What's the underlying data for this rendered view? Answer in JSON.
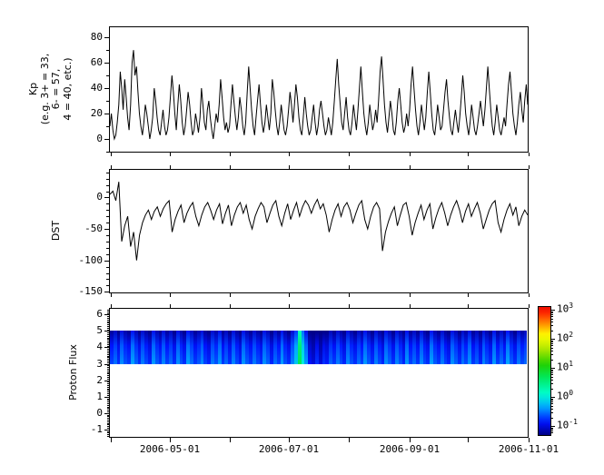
{
  "figure": {
    "background": "#ffffff",
    "axis_color": "#000000",
    "series_color": "#000000",
    "text_color": "#000000"
  },
  "x_axis": {
    "start_date": "2006-03-31",
    "end_date": "2006-11-01",
    "span_days": 215,
    "tick_dates": [
      "2006-04-01",
      "2006-05-01",
      "2006-06-01",
      "2006-07-01",
      "2006-08-01",
      "2006-09-01",
      "2006-10-01",
      "2006-11-01"
    ],
    "label_dates": [
      "2006-05-01",
      "2006-07-01",
      "2006-09-01",
      "2006-11-01"
    ]
  },
  "chart_data": [
    {
      "id": "kp",
      "type": "line",
      "ylabel": "Kp\n(e.g. 3+ = 33,\n6- = 57,\n4 = 40, etc.)",
      "ylim": [
        -10,
        88
      ],
      "yticks": [
        0,
        20,
        40,
        60,
        80
      ],
      "yminor_step": 10,
      "values": [
        10,
        20,
        7,
        0,
        3,
        13,
        27,
        53,
        40,
        23,
        47,
        33,
        17,
        7,
        27,
        60,
        70,
        50,
        57,
        37,
        20,
        10,
        3,
        13,
        27,
        20,
        10,
        0,
        7,
        17,
        40,
        30,
        17,
        7,
        3,
        13,
        23,
        10,
        3,
        7,
        17,
        33,
        50,
        37,
        20,
        7,
        27,
        43,
        30,
        13,
        3,
        10,
        23,
        37,
        27,
        13,
        3,
        7,
        20,
        13,
        5,
        17,
        40,
        27,
        13,
        7,
        23,
        30,
        17,
        7,
        0,
        10,
        20,
        13,
        27,
        47,
        33,
        17,
        7,
        13,
        5,
        10,
        27,
        43,
        30,
        17,
        7,
        17,
        33,
        23,
        10,
        3,
        13,
        37,
        57,
        40,
        23,
        10,
        3,
        17,
        30,
        43,
        27,
        13,
        5,
        13,
        27,
        17,
        7,
        20,
        47,
        37,
        23,
        10,
        3,
        13,
        27,
        17,
        7,
        3,
        10,
        23,
        37,
        27,
        13,
        27,
        43,
        33,
        17,
        7,
        3,
        17,
        33,
        20,
        10,
        3,
        7,
        17,
        27,
        13,
        3,
        10,
        23,
        30,
        20,
        10,
        3,
        7,
        17,
        10,
        3,
        13,
        30,
        47,
        63,
        43,
        27,
        13,
        7,
        20,
        33,
        17,
        7,
        3,
        13,
        27,
        17,
        7,
        23,
        40,
        57,
        37,
        20,
        10,
        3,
        13,
        27,
        17,
        7,
        13,
        23,
        13,
        30,
        53,
        65,
        47,
        27,
        13,
        5,
        17,
        30,
        20,
        7,
        3,
        13,
        30,
        40,
        27,
        13,
        5,
        10,
        20,
        10,
        23,
        43,
        57,
        40,
        23,
        10,
        3,
        13,
        27,
        17,
        7,
        17,
        37,
        53,
        37,
        20,
        7,
        3,
        13,
        27,
        17,
        7,
        10,
        23,
        37,
        47,
        30,
        17,
        7,
        3,
        13,
        23,
        13,
        5,
        17,
        33,
        50,
        37,
        20,
        10,
        3,
        13,
        27,
        17,
        7,
        3,
        10,
        20,
        30,
        20,
        10,
        23,
        40,
        57,
        40,
        23,
        10,
        3,
        13,
        27,
        17,
        7,
        3,
        10,
        17,
        10,
        27,
        43,
        53,
        37,
        20,
        10,
        3,
        13,
        27,
        37,
        23,
        13,
        30,
        43,
        27
      ]
    },
    {
      "id": "dst",
      "type": "line",
      "ylabel": "DST",
      "ylim": [
        -151,
        44
      ],
      "yticks": [
        0,
        -50,
        -100,
        -150
      ],
      "yminor_step": 10,
      "values": [
        5,
        10,
        -5,
        25,
        -70,
        -45,
        -30,
        -78,
        -55,
        -100,
        -60,
        -40,
        -28,
        -20,
        -35,
        -22,
        -15,
        -30,
        -18,
        -10,
        -5,
        -55,
        -35,
        -22,
        -12,
        -40,
        -25,
        -15,
        -8,
        -30,
        -45,
        -28,
        -15,
        -8,
        -20,
        -35,
        -20,
        -10,
        -42,
        -25,
        -12,
        -45,
        -28,
        -15,
        -8,
        -25,
        -12,
        -35,
        -50,
        -30,
        -18,
        -8,
        -15,
        -40,
        -25,
        -12,
        -5,
        -30,
        -45,
        -25,
        -10,
        -35,
        -20,
        -8,
        -30,
        -15,
        -5,
        -12,
        -25,
        -12,
        -3,
        -18,
        -10,
        -28,
        -55,
        -35,
        -20,
        -10,
        -30,
        -15,
        -8,
        -20,
        -40,
        -25,
        -12,
        -5,
        -35,
        -50,
        -30,
        -15,
        -8,
        -18,
        -85,
        -55,
        -38,
        -25,
        -15,
        -45,
        -28,
        -12,
        -8,
        -30,
        -60,
        -40,
        -25,
        -12,
        -35,
        -20,
        -10,
        -50,
        -32,
        -18,
        -8,
        -25,
        -45,
        -28,
        -15,
        -5,
        -20,
        -40,
        -22,
        -10,
        -30,
        -18,
        -8,
        -25,
        -50,
        -35,
        -20,
        -10,
        -5,
        -40,
        -55,
        -35,
        -20,
        -10,
        -28,
        -15,
        -45,
        -30,
        -20,
        -28
      ]
    },
    {
      "id": "proton",
      "type": "heatmap",
      "ylabel": "Proton Flux",
      "ylim": [
        -1.45,
        6.35
      ],
      "yticks": [
        6,
        5,
        4,
        3,
        2,
        1,
        0,
        -1
      ],
      "yminor_step": 0.1,
      "band": {
        "y_low": 3,
        "y_high": 5
      },
      "flux_columns": [
        0.14,
        0.2,
        0.12,
        0.25,
        0.16,
        0.13,
        0.3,
        0.18,
        0.12,
        0.22,
        0.15,
        0.11,
        0.28,
        0.17,
        0.13,
        0.24,
        0.14,
        0.19,
        0.12,
        0.26,
        0.16,
        0.12,
        0.3,
        0.2,
        0.13,
        0.17,
        0.25,
        0.14,
        0.11,
        0.22,
        0.16,
        0.28,
        0.13,
        0.19,
        0.12,
        0.24,
        0.15,
        0.11,
        0.27,
        0.17,
        0.13,
        0.22,
        0.15,
        0.12,
        0.26,
        0.18,
        0.11,
        0.2,
        0.14,
        0.29,
        0.16,
        0.12,
        0.23,
        0.45,
        3.5,
        0.7,
        0.28,
        0.09,
        0.07,
        0.12,
        0.07,
        0.12,
        0.1,
        0.18,
        0.13,
        0.22,
        0.15,
        0.11,
        0.25,
        0.16,
        0.12,
        0.2,
        0.14,
        0.28,
        0.17,
        0.12,
        0.23,
        0.15,
        0.11,
        0.26,
        0.18,
        0.12,
        0.24,
        0.16,
        0.11,
        0.28,
        0.14,
        0.2,
        0.13,
        0.25,
        0.15,
        0.12,
        0.3,
        0.17,
        0.13,
        0.22,
        0.14,
        0.11,
        0.26,
        0.18,
        0.12,
        0.21,
        0.15,
        0.27,
        0.13,
        0.18,
        0.11,
        0.24,
        0.16,
        0.12,
        0.28,
        0.14,
        0.2,
        0.13,
        0.31,
        0.17,
        0.12,
        0.22,
        0.15,
        0.19
      ]
    }
  ],
  "colorbar": {
    "scale": "log",
    "tick_exponents": [
      3,
      2,
      1,
      0,
      -1
    ],
    "range_exponents": [
      -1.3,
      3.1
    ],
    "colormap": "rainbow",
    "gradient_stops": [
      {
        "t": 0.0,
        "c": "#000085"
      },
      {
        "t": 0.1,
        "c": "#0010ff"
      },
      {
        "t": 0.22,
        "c": "#00a8ff"
      },
      {
        "t": 0.32,
        "c": "#00ffd0"
      },
      {
        "t": 0.45,
        "c": "#00e85c"
      },
      {
        "t": 0.55,
        "c": "#20d000"
      },
      {
        "t": 0.68,
        "c": "#b8e800"
      },
      {
        "t": 0.78,
        "c": "#ffff00"
      },
      {
        "t": 0.88,
        "c": "#ff8000"
      },
      {
        "t": 0.95,
        "c": "#ff2800"
      },
      {
        "t": 1.0,
        "c": "#ee0e00"
      }
    ]
  }
}
